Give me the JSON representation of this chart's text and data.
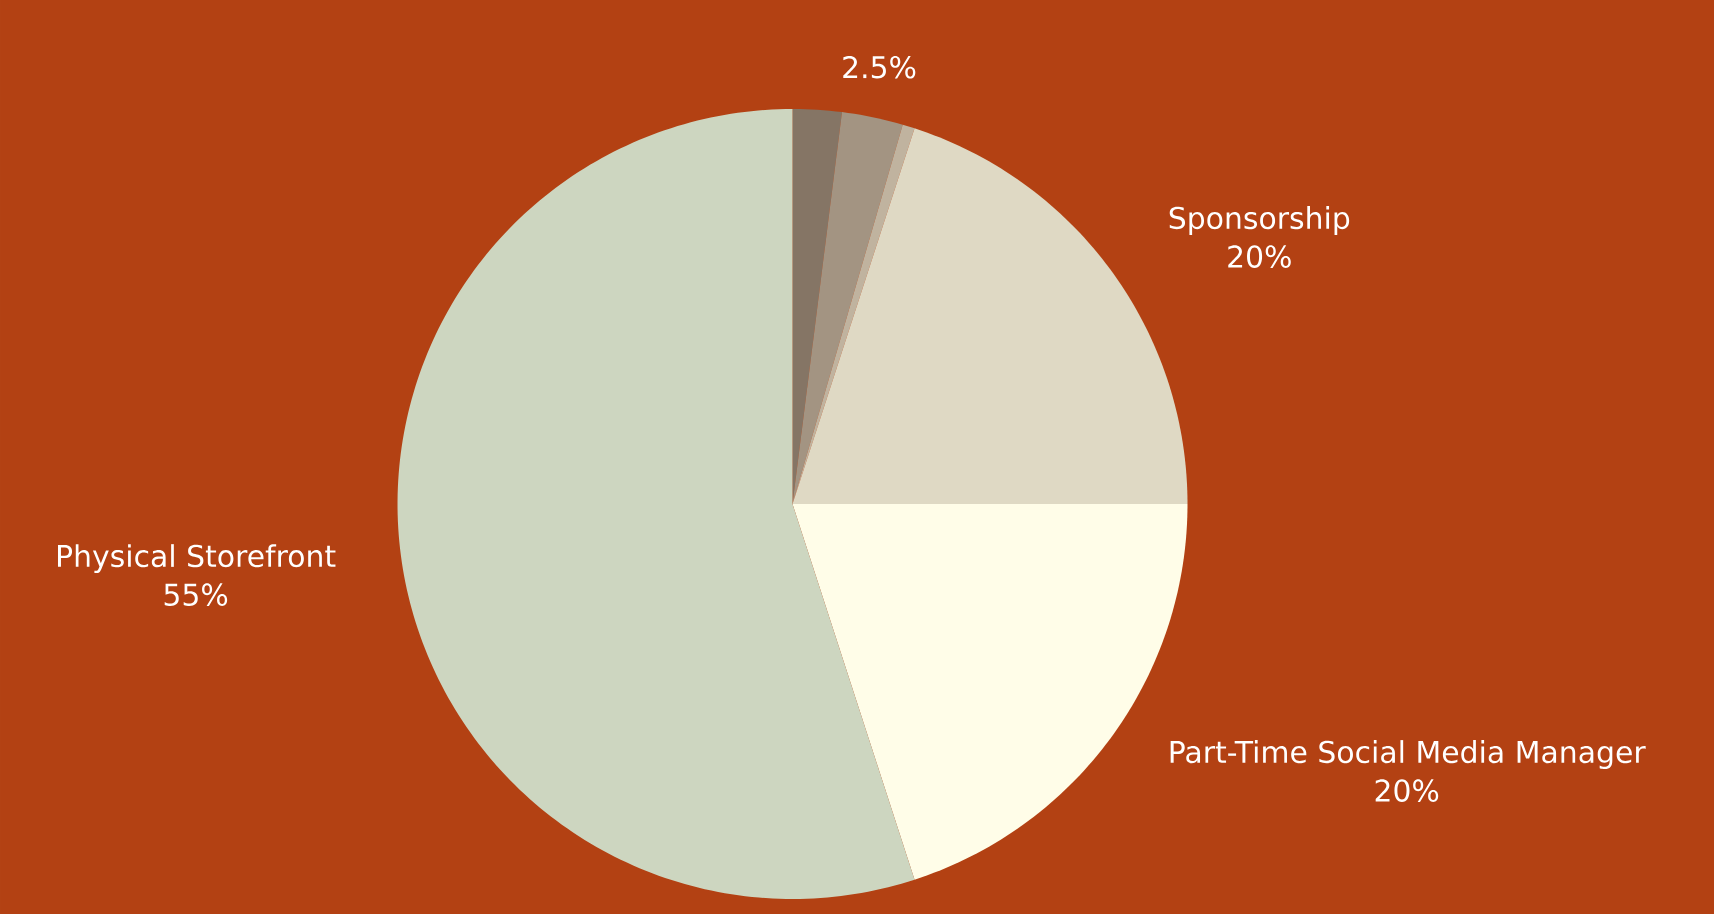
{
  "chart_data": {
    "type": "pie",
    "categories": [
      null,
      null,
      null,
      "Sponsorship",
      "Part-Time Social Media Manager",
      "Physical Storefront"
    ],
    "values": [
      2,
      2.5,
      0.5,
      20,
      20,
      55
    ],
    "value_labels": [
      null,
      "2.5%",
      null,
      "20%",
      "20%",
      "55%"
    ],
    "colors": [
      "#857565",
      "#a39482",
      "#c0b39f",
      "#dfd9c4",
      "#fffde8",
      "#cdd6c0"
    ]
  }
}
